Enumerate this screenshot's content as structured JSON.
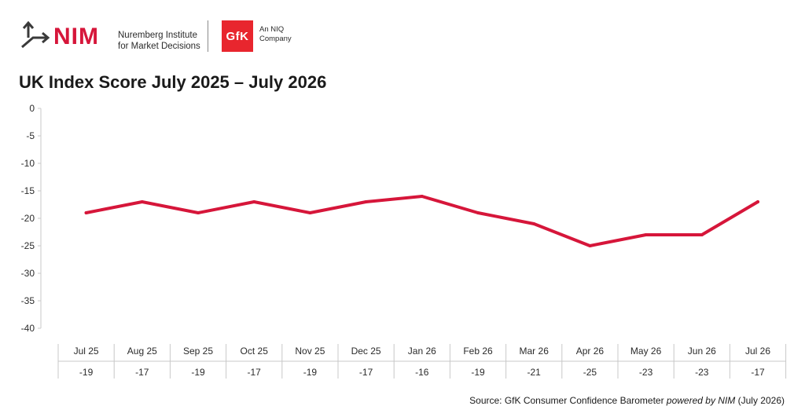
{
  "logos": {
    "nim": {
      "wordmark": "NIM",
      "subtitle_line1": "Nuremberg Institute",
      "subtitle_line2": "for Market Decisions",
      "brand_color": "#d6163a"
    },
    "gfk": {
      "wordmark": "GfK",
      "subtitle_line1": "An NIQ",
      "subtitle_line2": "Company",
      "brand_color": "#e8262e"
    }
  },
  "source": {
    "prefix": "Source: GfK Consumer Confidence Barometer ",
    "italic": "powered by NIM",
    "suffix": " (July 2026)"
  },
  "chart_data": {
    "type": "line",
    "title": "UK Index Score July 2025 – July 2026",
    "xlabel": "",
    "ylabel": "",
    "ylim": [
      -40,
      0
    ],
    "yticks": [
      0,
      -5,
      -10,
      -15,
      -20,
      -25,
      -30,
      -35,
      -40
    ],
    "grid": false,
    "legend": "none",
    "line_color": "#d6163a",
    "categories": [
      "Jul 25",
      "Aug 25",
      "Sep 25",
      "Oct 25",
      "Nov 25",
      "Dec 25",
      "Jan 26",
      "Feb 26",
      "Mar 26",
      "Apr 26",
      "May 26",
      "Jun 26",
      "Jul 26"
    ],
    "series": [
      {
        "values": [
          -19,
          -17,
          -19,
          -17,
          -19,
          -17,
          -16,
          -19,
          -21,
          -25,
          -23,
          -23,
          -17
        ]
      }
    ],
    "table_row_labels": [
      "-19",
      "-17",
      "-19",
      "-17",
      "-19",
      "-17",
      "-16",
      "-19",
      "-21",
      "-25",
      "-23",
      "-23",
      "-17"
    ]
  }
}
